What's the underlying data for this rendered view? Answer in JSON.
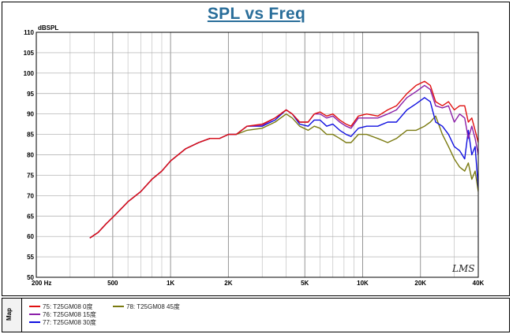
{
  "title": "SPL vs Freq",
  "watermark": "LMS",
  "map_label": "Map",
  "chart_data": {
    "type": "line",
    "title": "SPL vs Freq",
    "ylabel": "dBSPL",
    "xlabel": "",
    "x_scale": "log",
    "xlim": [
      200,
      40000
    ],
    "ylim": [
      50,
      110
    ],
    "grid": true,
    "x_tick_labels": [
      {
        "value": 200,
        "label": "200  Hz"
      },
      {
        "value": 500,
        "label": "500"
      },
      {
        "value": 1000,
        "label": "1K"
      },
      {
        "value": 2000,
        "label": "2K"
      },
      {
        "value": 5000,
        "label": "5K"
      },
      {
        "value": 10000,
        "label": "10K"
      },
      {
        "value": 20000,
        "label": "20K"
      },
      {
        "value": 40000,
        "label": "40K"
      }
    ],
    "y_ticks": [
      50,
      55,
      60,
      65,
      70,
      75,
      80,
      85,
      90,
      95,
      100,
      105,
      110
    ],
    "series": [
      {
        "name": "75: T25GM08  0度",
        "color": "#e01010",
        "points": [
          [
            380,
            59.6
          ],
          [
            420,
            61
          ],
          [
            460,
            63
          ],
          [
            520,
            65.5
          ],
          [
            600,
            68.5
          ],
          [
            700,
            71
          ],
          [
            800,
            74
          ],
          [
            900,
            76
          ],
          [
            1000,
            78.5
          ],
          [
            1200,
            81.5
          ],
          [
            1400,
            83
          ],
          [
            1600,
            84
          ],
          [
            1800,
            84
          ],
          [
            2000,
            85
          ],
          [
            2200,
            85
          ],
          [
            2500,
            87
          ],
          [
            3000,
            87.5
          ],
          [
            3500,
            89
          ],
          [
            4000,
            91
          ],
          [
            4300,
            90
          ],
          [
            4700,
            88
          ],
          [
            5200,
            88
          ],
          [
            5600,
            90
          ],
          [
            6000,
            90.5
          ],
          [
            6500,
            89.5
          ],
          [
            7000,
            90
          ],
          [
            7600,
            88.5
          ],
          [
            8200,
            87.5
          ],
          [
            8700,
            87
          ],
          [
            9500,
            89.5
          ],
          [
            10500,
            90
          ],
          [
            12000,
            89.5
          ],
          [
            13500,
            91
          ],
          [
            15000,
            92
          ],
          [
            17000,
            95
          ],
          [
            19000,
            97
          ],
          [
            21000,
            98
          ],
          [
            22500,
            97
          ],
          [
            24000,
            93
          ],
          [
            26000,
            92
          ],
          [
            28000,
            93
          ],
          [
            30000,
            91
          ],
          [
            32000,
            92
          ],
          [
            34000,
            92
          ],
          [
            35500,
            88
          ],
          [
            37000,
            89
          ],
          [
            38500,
            86
          ],
          [
            40000,
            83
          ]
        ]
      },
      {
        "name": "76: T25GM08 15度",
        "color": "#8b1fa8",
        "points": [
          [
            380,
            59.6
          ],
          [
            420,
            61
          ],
          [
            460,
            63
          ],
          [
            520,
            65.5
          ],
          [
            600,
            68.5
          ],
          [
            700,
            71
          ],
          [
            800,
            74
          ],
          [
            900,
            76
          ],
          [
            1000,
            78.5
          ],
          [
            1200,
            81.5
          ],
          [
            1400,
            83
          ],
          [
            1600,
            84
          ],
          [
            1800,
            84
          ],
          [
            2000,
            85
          ],
          [
            2200,
            85
          ],
          [
            2500,
            87
          ],
          [
            3000,
            87.2
          ],
          [
            3500,
            89
          ],
          [
            4000,
            91
          ],
          [
            4300,
            90
          ],
          [
            4700,
            88
          ],
          [
            5200,
            88
          ],
          [
            5600,
            90
          ],
          [
            6000,
            90
          ],
          [
            6500,
            89
          ],
          [
            7000,
            89.5
          ],
          [
            7600,
            88
          ],
          [
            8200,
            87
          ],
          [
            8700,
            86.5
          ],
          [
            9500,
            89
          ],
          [
            10500,
            89
          ],
          [
            12000,
            89
          ],
          [
            13500,
            90
          ],
          [
            15000,
            91
          ],
          [
            17000,
            94
          ],
          [
            19000,
            95.5
          ],
          [
            21000,
            97
          ],
          [
            22500,
            96
          ],
          [
            24000,
            92
          ],
          [
            26000,
            91.5
          ],
          [
            28000,
            92
          ],
          [
            30000,
            88
          ],
          [
            32000,
            90
          ],
          [
            34000,
            89
          ],
          [
            35500,
            84
          ],
          [
            37000,
            87
          ],
          [
            38500,
            84
          ],
          [
            40000,
            80
          ]
        ]
      },
      {
        "name": "77: T25GM08  30度",
        "color": "#1010e0",
        "points": [
          [
            380,
            59.6
          ],
          [
            420,
            61
          ],
          [
            460,
            63
          ],
          [
            520,
            65.5
          ],
          [
            600,
            68.5
          ],
          [
            700,
            71
          ],
          [
            800,
            74
          ],
          [
            900,
            76
          ],
          [
            1000,
            78.5
          ],
          [
            1200,
            81.5
          ],
          [
            1400,
            83
          ],
          [
            1600,
            84
          ],
          [
            1800,
            84
          ],
          [
            2000,
            85
          ],
          [
            2200,
            85
          ],
          [
            2500,
            87
          ],
          [
            3000,
            87
          ],
          [
            3500,
            88.5
          ],
          [
            4000,
            91
          ],
          [
            4300,
            90
          ],
          [
            4700,
            87.5
          ],
          [
            5200,
            87
          ],
          [
            5600,
            88.5
          ],
          [
            6000,
            88.5
          ],
          [
            6500,
            87
          ],
          [
            7000,
            87.5
          ],
          [
            7600,
            86
          ],
          [
            8200,
            85
          ],
          [
            8700,
            84.5
          ],
          [
            9500,
            86.5
          ],
          [
            10500,
            87
          ],
          [
            12000,
            87
          ],
          [
            13500,
            88
          ],
          [
            15000,
            88
          ],
          [
            17000,
            91
          ],
          [
            19000,
            92.5
          ],
          [
            21000,
            94
          ],
          [
            22500,
            93
          ],
          [
            24000,
            88
          ],
          [
            26000,
            87
          ],
          [
            28000,
            85
          ],
          [
            30000,
            82
          ],
          [
            32000,
            81
          ],
          [
            34000,
            79
          ],
          [
            35500,
            86
          ],
          [
            37000,
            80
          ],
          [
            38500,
            82
          ],
          [
            40000,
            72
          ]
        ]
      },
      {
        "name": "78: T25GM08 45度",
        "color": "#7a7a10",
        "points": [
          [
            380,
            59.6
          ],
          [
            420,
            61
          ],
          [
            460,
            63
          ],
          [
            520,
            65.5
          ],
          [
            600,
            68.5
          ],
          [
            700,
            71
          ],
          [
            800,
            74
          ],
          [
            900,
            76
          ],
          [
            1000,
            78.5
          ],
          [
            1200,
            81.5
          ],
          [
            1400,
            83
          ],
          [
            1600,
            84
          ],
          [
            1800,
            84
          ],
          [
            2000,
            85
          ],
          [
            2200,
            85
          ],
          [
            2500,
            86
          ],
          [
            3000,
            86.5
          ],
          [
            3500,
            88
          ],
          [
            4000,
            90
          ],
          [
            4300,
            89
          ],
          [
            4700,
            87
          ],
          [
            5200,
            86
          ],
          [
            5600,
            87
          ],
          [
            6000,
            86.5
          ],
          [
            6500,
            85
          ],
          [
            7000,
            85
          ],
          [
            7600,
            84
          ],
          [
            8200,
            83
          ],
          [
            8700,
            83
          ],
          [
            9500,
            85
          ],
          [
            10500,
            85
          ],
          [
            12000,
            84
          ],
          [
            13500,
            83
          ],
          [
            15000,
            84
          ],
          [
            17000,
            86
          ],
          [
            19000,
            86
          ],
          [
            21000,
            87
          ],
          [
            22500,
            88
          ],
          [
            24000,
            89.5
          ],
          [
            26000,
            85
          ],
          [
            28000,
            82
          ],
          [
            30000,
            79
          ],
          [
            32000,
            77
          ],
          [
            34000,
            76
          ],
          [
            35500,
            78
          ],
          [
            37000,
            74
          ],
          [
            38500,
            76
          ],
          [
            40000,
            71
          ]
        ]
      }
    ],
    "legend": {
      "placement": "bottom",
      "columns": [
        [
          "75: T25GM08  0度",
          "76: T25GM08 15度",
          "77: T25GM08  30度"
        ],
        [
          "78: T25GM08 45度"
        ]
      ]
    }
  }
}
